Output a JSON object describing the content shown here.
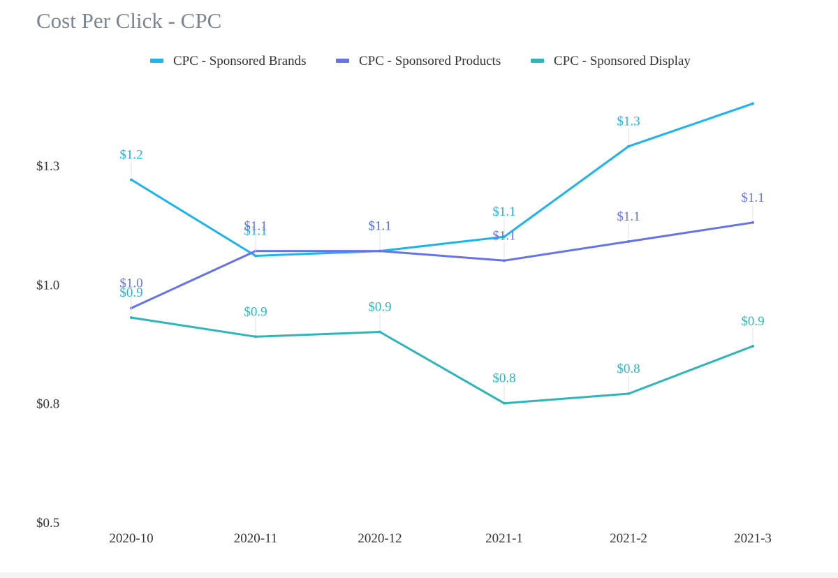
{
  "chart_data": {
    "type": "line",
    "title": "Cost Per Click - CPC",
    "xlabel": "",
    "ylabel": "",
    "categories": [
      "2020-10",
      "2020-11",
      "2020-12",
      "2021-1",
      "2021-2",
      "2021-3"
    ],
    "y_ticks": [
      {
        "value": 0.5,
        "label": "$0.5"
      },
      {
        "value": 0.75,
        "label": "$0.8"
      },
      {
        "value": 1.0,
        "label": "$1.0"
      },
      {
        "value": 1.25,
        "label": "$1.3"
      }
    ],
    "ylim": [
      0.5,
      1.4
    ],
    "grid": false,
    "legend_position": "top-center",
    "series": [
      {
        "name": "CPC - Sponsored Brands",
        "color": "#1ab4f0",
        "values": [
          1.22,
          1.06,
          1.07,
          1.1,
          1.29,
          1.38
        ],
        "labels": [
          "$1.2",
          "$1.1",
          "$1.1",
          "$1.1",
          "$1.3",
          ""
        ]
      },
      {
        "name": "CPC - Sponsored Products",
        "color": "#6472f0",
        "values": [
          0.95,
          1.07,
          1.07,
          1.05,
          1.09,
          1.13
        ],
        "labels": [
          "$1.0",
          "$1.1",
          "$1.1",
          "$1.1",
          "$1.1",
          "$1.1"
        ]
      },
      {
        "name": "CPC - Sponsored Display",
        "color": "#2db5bc",
        "values": [
          0.93,
          0.89,
          0.9,
          0.75,
          0.77,
          0.87
        ],
        "labels": [
          "$0.9",
          "$0.9",
          "$0.9",
          "$0.8",
          "$0.8",
          "$0.9"
        ]
      }
    ]
  }
}
